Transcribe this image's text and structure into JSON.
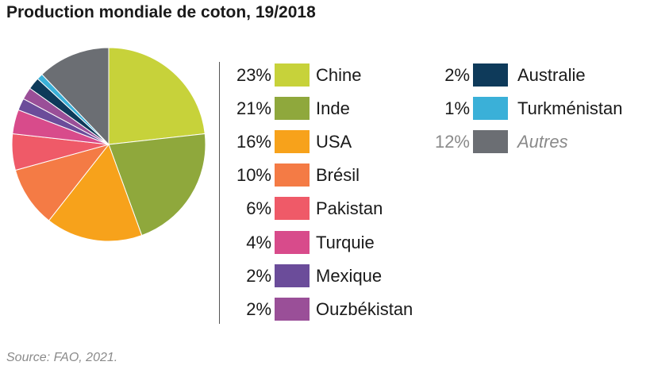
{
  "title": "Production mondiale de coton, 19/2018",
  "source": "Source: FAO, 2021.",
  "chart_data": {
    "type": "pie",
    "title": "Production mondiale de coton, 19/2018",
    "slices": [
      {
        "label": "Chine",
        "pct_label": "23%",
        "value": 23,
        "color": "#c7d23a"
      },
      {
        "label": "Inde",
        "pct_label": "21%",
        "value": 21,
        "color": "#8fa83c"
      },
      {
        "label": "USA",
        "pct_label": "16%",
        "value": 16,
        "color": "#f7a21b"
      },
      {
        "label": "Brésil",
        "pct_label": "10%",
        "value": 10,
        "color": "#f47b45"
      },
      {
        "label": "Pakistan",
        "pct_label": "6%",
        "value": 6,
        "color": "#ef5a68"
      },
      {
        "label": "Turquie",
        "pct_label": "4%",
        "value": 4,
        "color": "#d84b8b"
      },
      {
        "label": "Mexique",
        "pct_label": "2%",
        "value": 2,
        "color": "#6b4c9a"
      },
      {
        "label": "Ouzbékistan",
        "pct_label": "2%",
        "value": 2,
        "color": "#9a4f98"
      },
      {
        "label": "Australie",
        "pct_label": "2%",
        "value": 2,
        "color": "#0e3a5a"
      },
      {
        "label": "Turkménistan",
        "pct_label": "1%",
        "value": 1,
        "color": "#3ab0d8"
      },
      {
        "label": "Autres",
        "pct_label": "12%",
        "value": 12,
        "color": "#6b6e73"
      }
    ]
  }
}
